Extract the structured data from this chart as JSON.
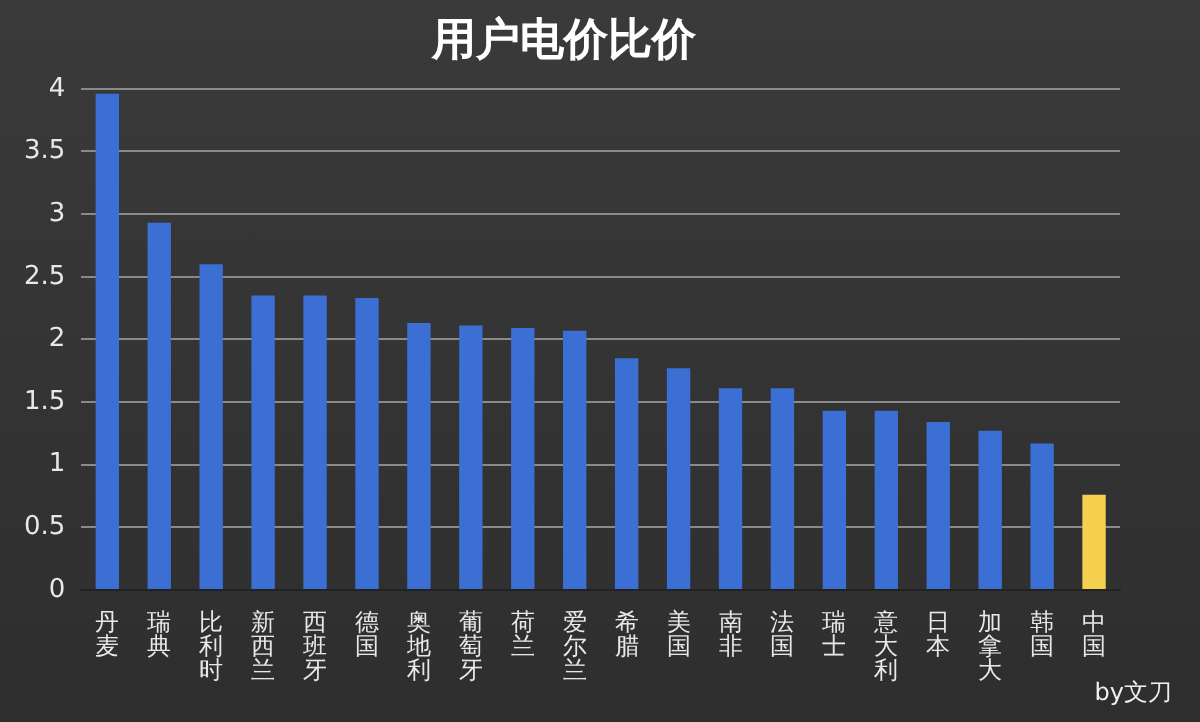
{
  "chart_data": {
    "type": "bar",
    "title": "用户电价比价",
    "categories": [
      "丹麦",
      "瑞典",
      "比利时",
      "新西兰",
      "西班牙",
      "德国",
      "奥地利",
      "葡萄牙",
      "荷兰",
      "爱尔兰",
      "希腊",
      "美国",
      "南非",
      "法国",
      "瑞士",
      "意大利",
      "日本",
      "加拿大",
      "韩国",
      "中国"
    ],
    "values": [
      3.96,
      2.93,
      2.6,
      2.35,
      2.35,
      2.33,
      2.13,
      2.11,
      2.09,
      2.07,
      1.85,
      1.77,
      1.61,
      1.61,
      1.43,
      1.43,
      1.34,
      1.27,
      1.17,
      0.76
    ],
    "colors": [
      "#3b6fd4",
      "#3b6fd4",
      "#3b6fd4",
      "#3b6fd4",
      "#3b6fd4",
      "#3b6fd4",
      "#3b6fd4",
      "#3b6fd4",
      "#3b6fd4",
      "#3b6fd4",
      "#3b6fd4",
      "#3b6fd4",
      "#3b6fd4",
      "#3b6fd4",
      "#3b6fd4",
      "#3b6fd4",
      "#3b6fd4",
      "#3b6fd4",
      "#3b6fd4",
      "#f5d14f"
    ],
    "ylim": [
      0,
      4
    ],
    "yticks": [
      0,
      0.5,
      1,
      1.5,
      2,
      2.5,
      3,
      3.5,
      4
    ],
    "grid": "y",
    "annotations": [
      "by文刀"
    ]
  }
}
